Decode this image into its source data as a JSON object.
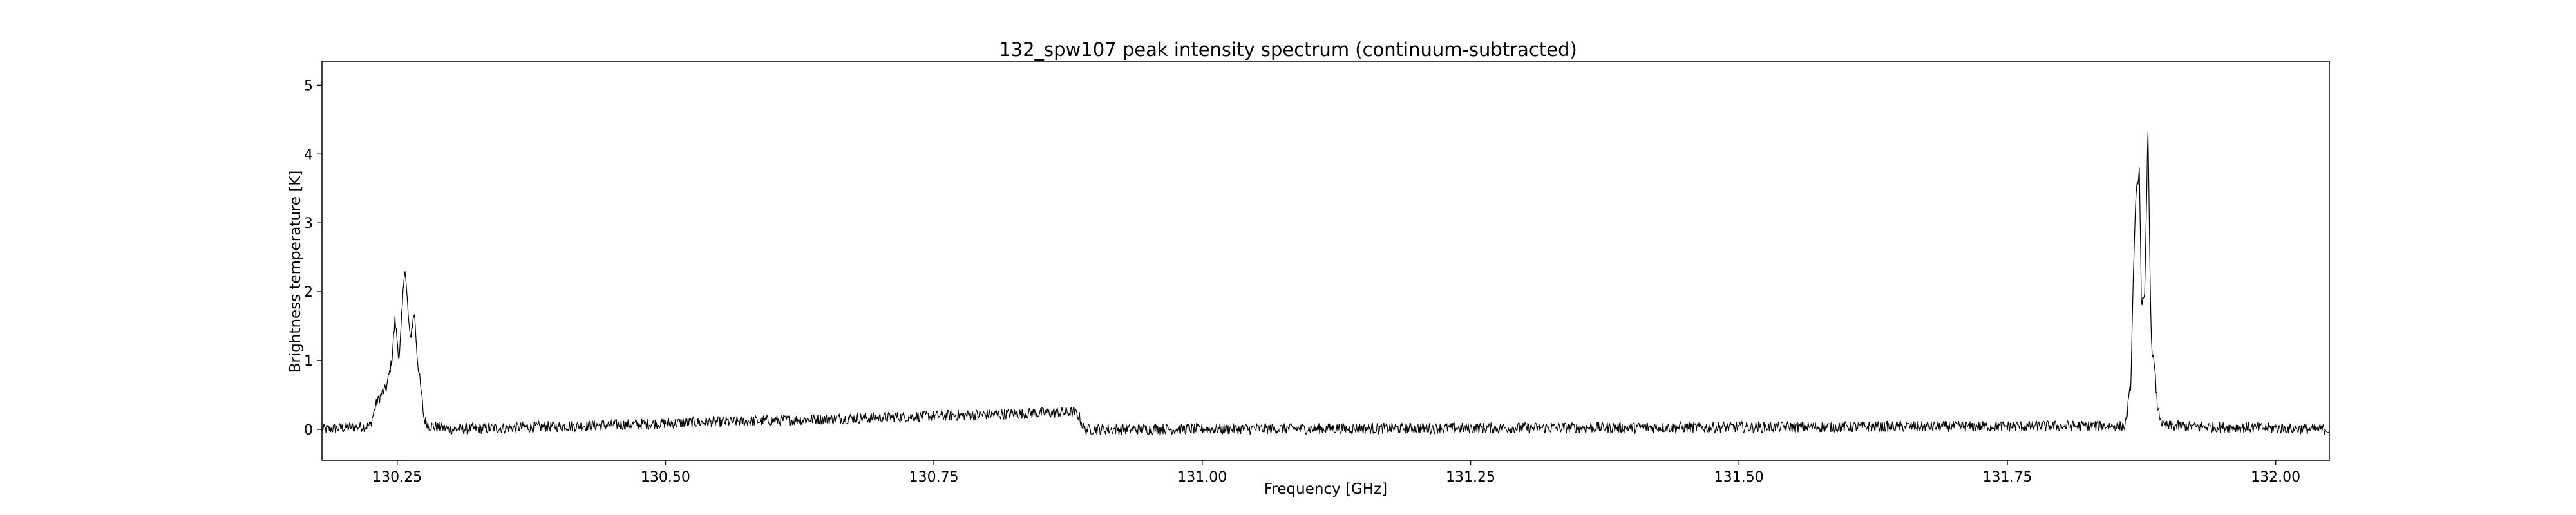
{
  "chart_data": {
    "type": "line",
    "title": "132_spw107 peak intensity spectrum (continuum-subtracted)",
    "xlabel": "Frequency [GHz]",
    "ylabel": "Brightness temperature [K]",
    "xlim": [
      130.18,
      132.05
    ],
    "ylim": [
      -0.45,
      5.35
    ],
    "xticks": [
      130.25,
      130.5,
      130.75,
      131.0,
      131.25,
      131.5,
      131.75,
      132.0
    ],
    "xtick_labels": [
      "130.25",
      "130.50",
      "130.75",
      "131.00",
      "131.25",
      "131.50",
      "131.75",
      "132.00"
    ],
    "yticks": [
      0,
      1,
      2,
      3,
      4,
      5
    ],
    "ytick_labels": [
      "0",
      "1",
      "2",
      "3",
      "4",
      "5"
    ],
    "grid": false,
    "line_color": "#000000",
    "series": [
      {
        "x": [
          130.18,
          130.225,
          130.23,
          130.235,
          130.24,
          130.245,
          130.248,
          130.252,
          130.257,
          130.262,
          130.266,
          130.269,
          130.272,
          130.275,
          130.28,
          130.3,
          130.88,
          130.885,
          130.89,
          131.86,
          131.865,
          131.868,
          131.87,
          131.873,
          131.875,
          131.878,
          131.881,
          131.884,
          131.887,
          131.89,
          131.895,
          132.05
        ],
        "y": [
          0.0,
          0.05,
          0.35,
          0.5,
          0.6,
          1.0,
          1.6,
          1.0,
          2.4,
          1.3,
          1.7,
          1.0,
          0.6,
          0.15,
          0.05,
          0.0,
          0.25,
          0.2,
          0.0,
          0.05,
          0.65,
          2.6,
          3.4,
          3.8,
          1.8,
          1.9,
          4.4,
          1.3,
          0.9,
          0.3,
          0.05,
          0.0
        ]
      }
    ]
  }
}
